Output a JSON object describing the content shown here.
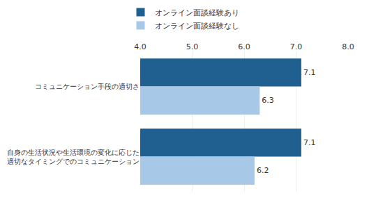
{
  "chart_data": {
    "type": "bar",
    "orientation": "horizontal",
    "categories": [
      "コミュニケーション手段の適切さ",
      "自身の生活状況や生活環境の変化に応じた\n適切なタイミングでのコミュニケーション"
    ],
    "series": [
      {
        "name": "オンライン面談経験あり",
        "color": "#1f6090",
        "values": [
          7.1,
          7.1
        ]
      },
      {
        "name": "オンライン面談経験なし",
        "color": "#a8c8e8",
        "values": [
          6.3,
          6.2
        ]
      }
    ],
    "xlim": [
      4.0,
      8.0
    ],
    "xticks": [
      {
        "value": 4.0,
        "label": "4.0"
      },
      {
        "value": 5.0,
        "label": "5.0"
      },
      {
        "value": 6.0,
        "label": "6.0"
      },
      {
        "value": 7.0,
        "label": "7.0"
      },
      {
        "value": 8.0,
        "label": "8.0"
      }
    ],
    "grid": true,
    "legend": "top",
    "data_labels": true
  }
}
